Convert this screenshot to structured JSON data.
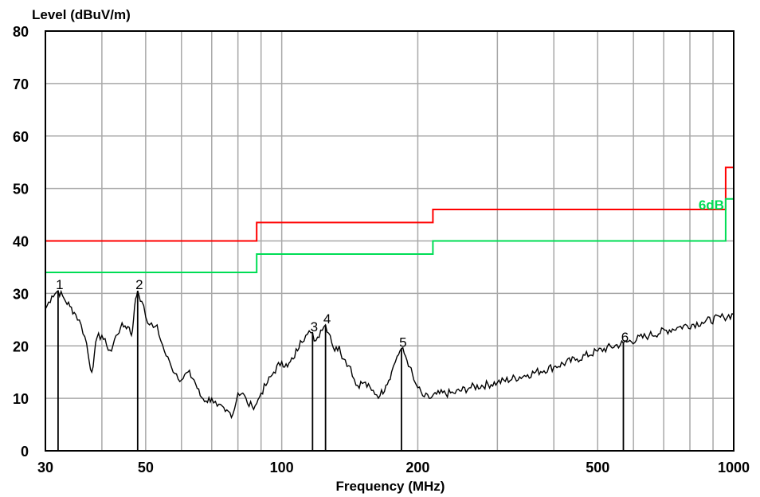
{
  "chart_data": {
    "type": "line",
    "title": "",
    "ylabel": "Level (dBuV/m)",
    "xlabel": "Frequency (MHz)",
    "x_scale": "log",
    "xlim": [
      30,
      1000
    ],
    "ylim": [
      0,
      80
    ],
    "grid": true,
    "x_tick_labels": [
      {
        "value": 30,
        "label": "30"
      },
      {
        "value": 50,
        "label": "50"
      },
      {
        "value": 100,
        "label": "100"
      },
      {
        "value": 200,
        "label": "200"
      },
      {
        "value": 500,
        "label": "500"
      },
      {
        "value": 1000,
        "label": "1000"
      }
    ],
    "x_gridlines": [
      40,
      50,
      60,
      70,
      80,
      90,
      100,
      200,
      300,
      400,
      500,
      600,
      700,
      800,
      900
    ],
    "y_tick_labels": [
      {
        "value": 0,
        "label": "0"
      },
      {
        "value": 10,
        "label": "10"
      },
      {
        "value": 20,
        "label": "20"
      },
      {
        "value": 30,
        "label": "30"
      },
      {
        "value": 40,
        "label": "40"
      },
      {
        "value": 50,
        "label": "50"
      },
      {
        "value": 60,
        "label": "60"
      },
      {
        "value": 70,
        "label": "70"
      },
      {
        "value": 80,
        "label": "80"
      }
    ],
    "limit_line": {
      "color": "#ff0000",
      "points": [
        [
          30,
          40.0
        ],
        [
          88,
          40.0
        ],
        [
          88,
          43.5
        ],
        [
          216,
          43.5
        ],
        [
          216,
          46.0
        ],
        [
          960,
          46.0
        ],
        [
          960,
          54.0
        ],
        [
          1000,
          54.0
        ]
      ]
    },
    "margin_line": {
      "color": "#00dd55",
      "label": "6dB",
      "points": [
        [
          30,
          34.0
        ],
        [
          88,
          34.0
        ],
        [
          88,
          37.5
        ],
        [
          216,
          37.5
        ],
        [
          216,
          40.0
        ],
        [
          960,
          40.0
        ],
        [
          960,
          48.0
        ],
        [
          1000,
          48.0
        ]
      ]
    },
    "trace": {
      "color": "#000000",
      "points": [
        [
          30,
          27.0
        ],
        [
          31,
          29.5
        ],
        [
          32,
          30.5
        ],
        [
          33,
          29.0
        ],
        [
          34,
          27.5
        ],
        [
          35,
          26.0
        ],
        [
          36,
          24.0
        ],
        [
          37,
          20.5
        ],
        [
          37.5,
          17.0
        ],
        [
          38,
          15.0
        ],
        [
          38.5,
          18.5
        ],
        [
          39,
          21.5
        ],
        [
          40,
          22.0
        ],
        [
          41,
          20.0
        ],
        [
          42,
          19.0
        ],
        [
          43,
          22.0
        ],
        [
          44,
          23.5
        ],
        [
          45,
          23.8
        ],
        [
          46,
          23.5
        ],
        [
          46.5,
          22.0
        ],
        [
          47,
          25.0
        ],
        [
          47.5,
          29.0
        ],
        [
          48,
          30.5
        ],
        [
          49,
          28.5
        ],
        [
          50,
          25.5
        ],
        [
          51,
          24.0
        ],
        [
          52,
          23.5
        ],
        [
          53,
          24.0
        ],
        [
          54,
          21.0
        ],
        [
          55,
          19.0
        ],
        [
          57,
          16.0
        ],
        [
          60,
          13.5
        ],
        [
          62,
          15.0
        ],
        [
          64,
          13.5
        ],
        [
          66,
          10.5
        ],
        [
          68,
          9.5
        ],
        [
          70,
          10.0
        ],
        [
          72,
          8.5
        ],
        [
          75,
          7.5
        ],
        [
          78,
          7.0
        ],
        [
          80,
          11.0
        ],
        [
          82,
          11.0
        ],
        [
          84,
          9.0
        ],
        [
          86,
          8.5
        ],
        [
          88,
          9.0
        ],
        [
          90,
          11.0
        ],
        [
          93,
          13.0
        ],
        [
          96,
          15.0
        ],
        [
          100,
          17.0
        ],
        [
          103,
          16.0
        ],
        [
          106,
          17.5
        ],
        [
          110,
          21.0
        ],
        [
          113,
          22.0
        ],
        [
          116,
          22.5
        ],
        [
          119,
          21.0
        ],
        [
          122,
          23.0
        ],
        [
          125,
          24.0
        ],
        [
          128,
          22.0
        ],
        [
          131,
          19.0
        ],
        [
          134,
          20.0
        ],
        [
          137,
          17.5
        ],
        [
          142,
          16.0
        ],
        [
          146,
          12.5
        ],
        [
          152,
          13.0
        ],
        [
          158,
          11.5
        ],
        [
          165,
          10.5
        ],
        [
          170,
          12.5
        ],
        [
          175,
          15.0
        ],
        [
          180,
          18.0
        ],
        [
          184,
          19.5
        ],
        [
          188,
          18.0
        ],
        [
          192,
          16.0
        ],
        [
          196,
          13.5
        ],
        [
          200,
          12.0
        ],
        [
          205,
          10.5
        ],
        [
          212,
          10.0
        ],
        [
          220,
          10.8
        ],
        [
          240,
          11.0
        ],
        [
          260,
          12.0
        ],
        [
          300,
          13.0
        ],
        [
          350,
          14.5
        ],
        [
          400,
          16.0
        ],
        [
          450,
          17.5
        ],
        [
          500,
          19.0
        ],
        [
          570,
          20.5
        ],
        [
          650,
          22.0
        ],
        [
          750,
          23.5
        ],
        [
          850,
          24.5
        ],
        [
          950,
          25.5
        ],
        [
          1000,
          26.0
        ]
      ]
    },
    "markers": [
      {
        "label": "1",
        "x": 32.0,
        "y": 30.5
      },
      {
        "label": "2",
        "x": 48.0,
        "y": 30.5
      },
      {
        "label": "3",
        "x": 117.0,
        "y": 22.5
      },
      {
        "label": "4",
        "x": 125.0,
        "y": 24.0
      },
      {
        "label": "5",
        "x": 184.0,
        "y": 19.5
      },
      {
        "label": "6",
        "x": 570.0,
        "y": 20.5
      }
    ]
  }
}
